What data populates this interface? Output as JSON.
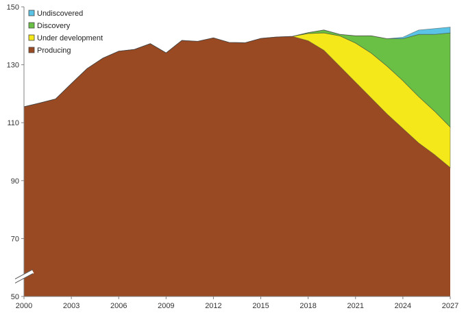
{
  "chart_data": {
    "type": "area",
    "stacked": true,
    "title": "",
    "xlabel": "",
    "ylabel": "",
    "xlim": [
      2000,
      2027
    ],
    "ylim": [
      50,
      150
    ],
    "axis_break": true,
    "grid": false,
    "legend_position": "top-left",
    "x_ticks": [
      2000,
      2003,
      2006,
      2009,
      2012,
      2015,
      2018,
      2021,
      2024,
      2027
    ],
    "y_ticks": [
      50,
      70,
      90,
      110,
      130,
      150
    ],
    "x": [
      2000,
      2001,
      2002,
      2003,
      2004,
      2005,
      2006,
      2007,
      2008,
      2009,
      2010,
      2011,
      2012,
      2013,
      2014,
      2015,
      2016,
      2017,
      2018,
      2019,
      2020,
      2021,
      2022,
      2023,
      2024,
      2025,
      2026,
      2027
    ],
    "series": [
      {
        "name": "Producing",
        "color": "#9a4a22",
        "values": [
          115.5,
          116.8,
          118.2,
          123.5,
          128.7,
          132.3,
          134.7,
          135.3,
          137.3,
          134.1,
          138.4,
          138.1,
          139.3,
          137.7,
          137.6,
          139.1,
          139.6,
          139.8,
          138.3,
          135.0,
          129.5,
          124.0,
          118.5,
          113.0,
          108.0,
          103.0,
          99.0,
          94.5
        ]
      },
      {
        "name": "Under development",
        "color": "#f5e81a",
        "values": [
          0,
          0,
          0,
          0,
          0,
          0,
          0,
          0,
          0,
          0,
          0,
          0,
          0,
          0,
          0,
          0,
          0,
          0,
          2.5,
          6.0,
          10.5,
          13.5,
          15.5,
          16.5,
          16.5,
          16.0,
          15.0,
          14.0
        ]
      },
      {
        "name": "Discovery",
        "color": "#6abf45",
        "values": [
          0,
          0,
          0,
          0,
          0,
          0,
          0,
          0,
          0,
          0,
          0,
          0,
          0,
          0,
          0,
          0,
          0,
          0,
          0.3,
          1.0,
          0.5,
          2.5,
          6.0,
          9.5,
          14.5,
          21.5,
          26.5,
          32.5
        ]
      },
      {
        "name": "Undiscovered",
        "color": "#5bc4e6",
        "values": [
          0,
          0,
          0,
          0,
          0,
          0,
          0,
          0,
          0,
          0,
          0,
          0,
          0,
          0,
          0,
          0,
          0,
          0,
          0,
          0,
          0,
          0,
          0,
          0,
          0.5,
          1.5,
          2.0,
          2.0
        ]
      }
    ],
    "legend": [
      "Undiscovered",
      "Discovery",
      "Under development",
      "Producing"
    ]
  }
}
